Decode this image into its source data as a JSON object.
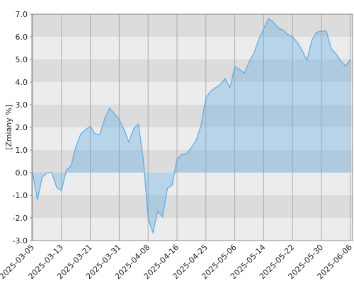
{
  "chart_data": {
    "type": "area",
    "y_label": "[Zmiany %]",
    "categories": [
      "2025-03-05",
      null,
      null,
      null,
      null,
      null,
      "2025-03-13",
      null,
      null,
      null,
      null,
      null,
      "2025-03-21",
      null,
      null,
      null,
      null,
      null,
      "2025-03-31",
      null,
      null,
      null,
      null,
      null,
      "2025-04-08",
      null,
      null,
      null,
      null,
      null,
      "2025-04-16",
      null,
      null,
      null,
      null,
      null,
      "2025-04-25",
      null,
      null,
      null,
      null,
      null,
      "2025-05-06",
      null,
      null,
      null,
      null,
      null,
      "2025-05-14",
      null,
      null,
      null,
      null,
      null,
      "2025-05-22",
      null,
      null,
      null,
      null,
      null,
      "2025-05-30",
      null,
      null,
      null,
      null,
      null,
      "2025-06-06"
    ],
    "series": [
      {
        "color": "#5aaae6",
        "values": [
          0.0,
          -1.2,
          -0.2,
          0.0,
          0.0,
          -0.65,
          -0.8,
          0.1,
          0.3,
          1.15,
          1.7,
          1.9,
          2.05,
          1.7,
          1.7,
          2.4,
          2.85,
          2.6,
          2.35,
          1.9,
          1.35,
          1.95,
          2.15,
          0.6,
          -2.0,
          -2.65,
          -1.7,
          -1.95,
          -0.7,
          -0.55,
          0.6,
          0.8,
          0.85,
          1.1,
          1.45,
          2.1,
          3.3,
          3.6,
          3.75,
          3.9,
          4.15,
          3.75,
          4.7,
          4.55,
          4.4,
          4.9,
          5.3,
          5.9,
          6.35,
          6.8,
          6.65,
          6.4,
          6.3,
          6.1,
          6.0,
          5.75,
          5.4,
          4.95,
          5.85,
          6.2,
          6.25,
          6.25,
          5.5,
          5.25,
          4.95,
          4.7,
          5.0
        ]
      }
    ],
    "ylim": [
      -3,
      7
    ],
    "yticks": [
      {
        "value": -3,
        "label": "-3.0"
      },
      {
        "value": -2,
        "label": "-2.0"
      },
      {
        "value": -1,
        "label": "-1.0"
      },
      {
        "value": 0,
        "label": "0.0"
      },
      {
        "value": 1,
        "label": "1.0"
      },
      {
        "value": 2,
        "label": "2.0"
      },
      {
        "value": 3,
        "label": "3.0"
      },
      {
        "value": 4,
        "label": "4.0"
      },
      {
        "value": 5,
        "label": "5.0"
      },
      {
        "value": 6,
        "label": "6.0"
      },
      {
        "value": 7,
        "label": "7.0"
      }
    ],
    "grid": true
  }
}
